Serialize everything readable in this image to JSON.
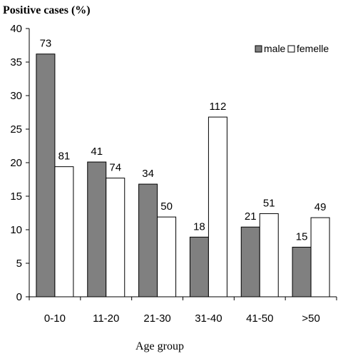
{
  "chart_data": {
    "type": "bar",
    "title": "",
    "ylabel": "Positive cases (%)",
    "xlabel": "Age group",
    "categories": [
      "0-10",
      "11-20",
      "21-30",
      "31-40",
      "41-50",
      ">50"
    ],
    "ylim": [
      0,
      40
    ],
    "yticks": [
      0,
      5,
      10,
      15,
      20,
      25,
      30,
      35,
      40
    ],
    "legend_position": "top-right",
    "grid": false,
    "series": [
      {
        "name": "male",
        "color": "#808080",
        "values": [
          36.2,
          20.1,
          16.8,
          8.9,
          10.4,
          7.4
        ],
        "labels": [
          "73",
          "41",
          "34",
          "18",
          "21",
          "15"
        ]
      },
      {
        "name": "femelle",
        "color": "#ffffff",
        "values": [
          19.4,
          17.7,
          11.9,
          26.8,
          12.4,
          11.8
        ],
        "labels": [
          "81",
          "74",
          "50",
          "112",
          "51",
          "49"
        ]
      }
    ]
  }
}
